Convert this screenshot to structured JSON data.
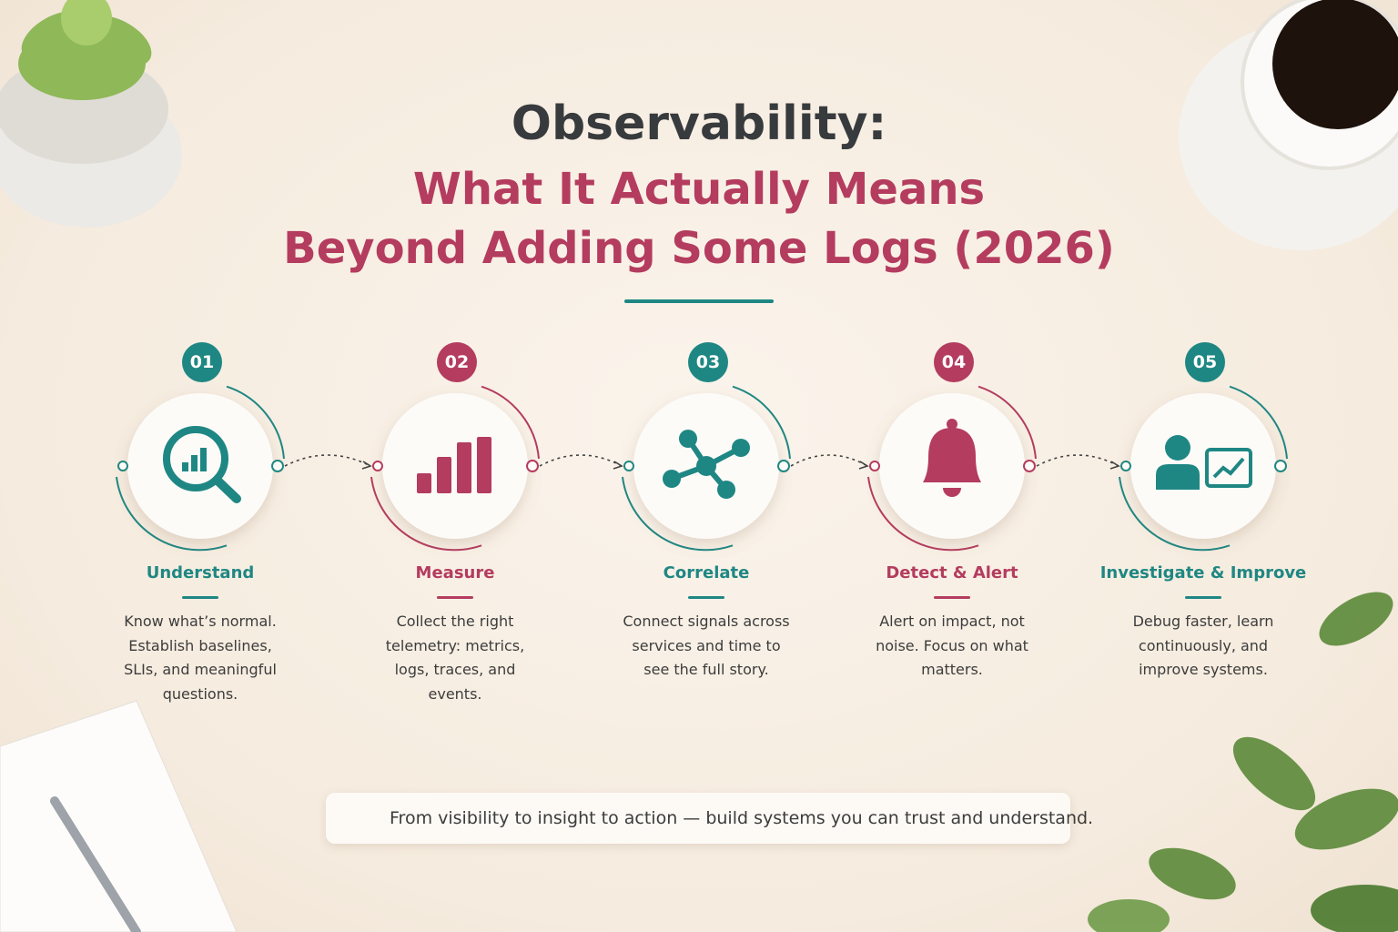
{
  "header": {
    "title": "Observability:",
    "subtitle_lines": [
      "What It Actually Means",
      "Beyond Adding Some Logs (2026)"
    ]
  },
  "steps": [
    {
      "number": "01",
      "title": "Understand",
      "description": "Know what’s normal. Establish baselines, SLIs, and meaningful questions.",
      "color": "#1f8783"
    },
    {
      "number": "02",
      "title": "Measure",
      "description": "Collect the right telemetry: metrics, logs, traces, and events.",
      "color": "#b43c5f"
    },
    {
      "number": "03",
      "title": "Correlate",
      "description": "Connect signals across services and time to see the full story.",
      "color": "#1f8783"
    },
    {
      "number": "04",
      "title": "Detect & Alert",
      "description": "Alert on impact, not noise. Focus on what matters.",
      "color": "#b43c5f"
    },
    {
      "number": "05",
      "title": "Investigate & Improve",
      "description": "Debug faster, learn continuously, and improve systems.",
      "color": "#1f8783"
    }
  ],
  "footer": {
    "text": "From visibility to insight to action — build systems you can trust and understand."
  }
}
